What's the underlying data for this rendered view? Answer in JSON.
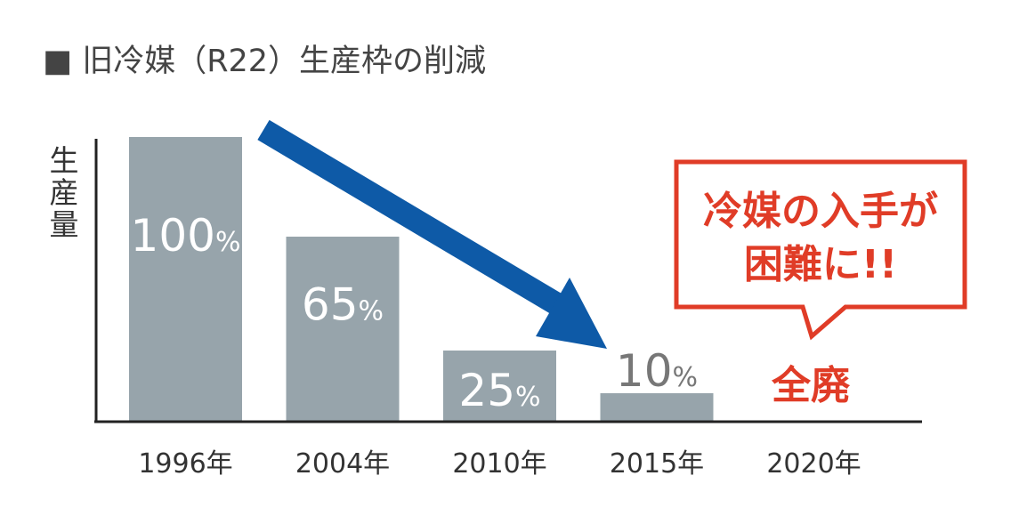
{
  "title": "■ 旧冷媒（R22）生産枠の削減",
  "chart_data": {
    "type": "bar",
    "title": "旧冷媒（R22）生産枠の削減",
    "ylabel": "生産量",
    "xlabel": "",
    "ylim": [
      0,
      100
    ],
    "categories": [
      "1996年",
      "2004年",
      "2010年",
      "2015年",
      "2020年"
    ],
    "values": [
      100,
      65,
      25,
      10,
      0
    ],
    "value_labels": [
      "100",
      "65",
      "25",
      "10",
      ""
    ],
    "value_unit": "%",
    "abolished_label": "全廃",
    "colors": {
      "bar": "#97a4ab",
      "arrow": "#0e5aa7",
      "accent": "#e03c27",
      "axis": "#222222"
    },
    "grid": false,
    "legend": "none"
  },
  "callout": {
    "line1": "冷媒の入手が",
    "line2": "困難に!!"
  }
}
